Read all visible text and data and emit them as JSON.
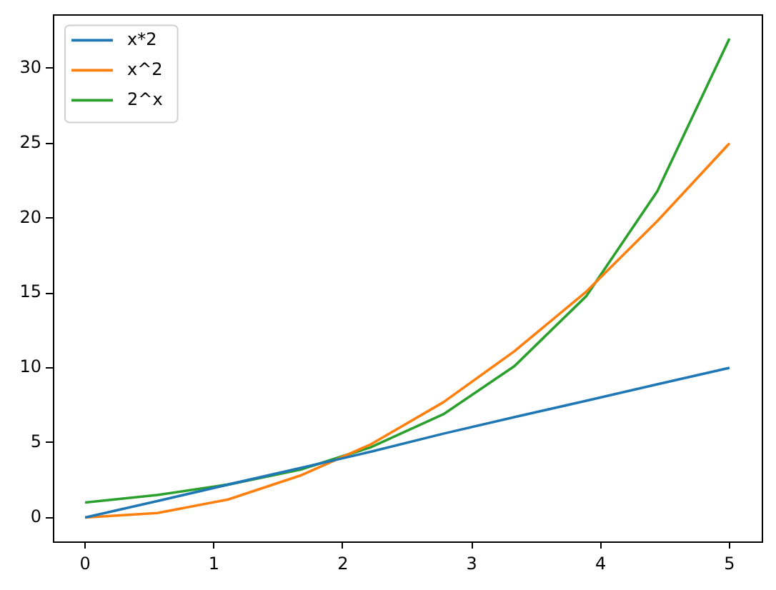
{
  "chart_data": {
    "type": "line",
    "x": [
      0,
      0.56,
      1.11,
      1.67,
      2.22,
      2.78,
      3.33,
      3.89,
      4.44,
      5
    ],
    "series": [
      {
        "name": "x*2",
        "color": "#1f77b4",
        "values": [
          0,
          1.1,
          2.2,
          3.3,
          4.4,
          5.6,
          6.7,
          7.8,
          8.9,
          10
        ]
      },
      {
        "name": "x^2",
        "color": "#ff7f0e",
        "values": [
          0,
          0.3,
          1.2,
          2.8,
          4.9,
          7.7,
          11.1,
          15.1,
          19.8,
          25
        ]
      },
      {
        "name": "2^x",
        "color": "#2ca02c",
        "values": [
          1,
          1.5,
          2.2,
          3.2,
          4.7,
          6.9,
          10.1,
          14.8,
          21.8,
          32
        ]
      }
    ],
    "xlim": [
      -0.25,
      5.25
    ],
    "ylim": [
      -1.6,
      33.6
    ],
    "xticks": [
      0,
      1,
      2,
      3,
      4,
      5
    ],
    "yticks": [
      0,
      5,
      10,
      15,
      20,
      25,
      30
    ],
    "legend": "top left",
    "grid": false,
    "marker": "none",
    "line_style": "solid"
  }
}
